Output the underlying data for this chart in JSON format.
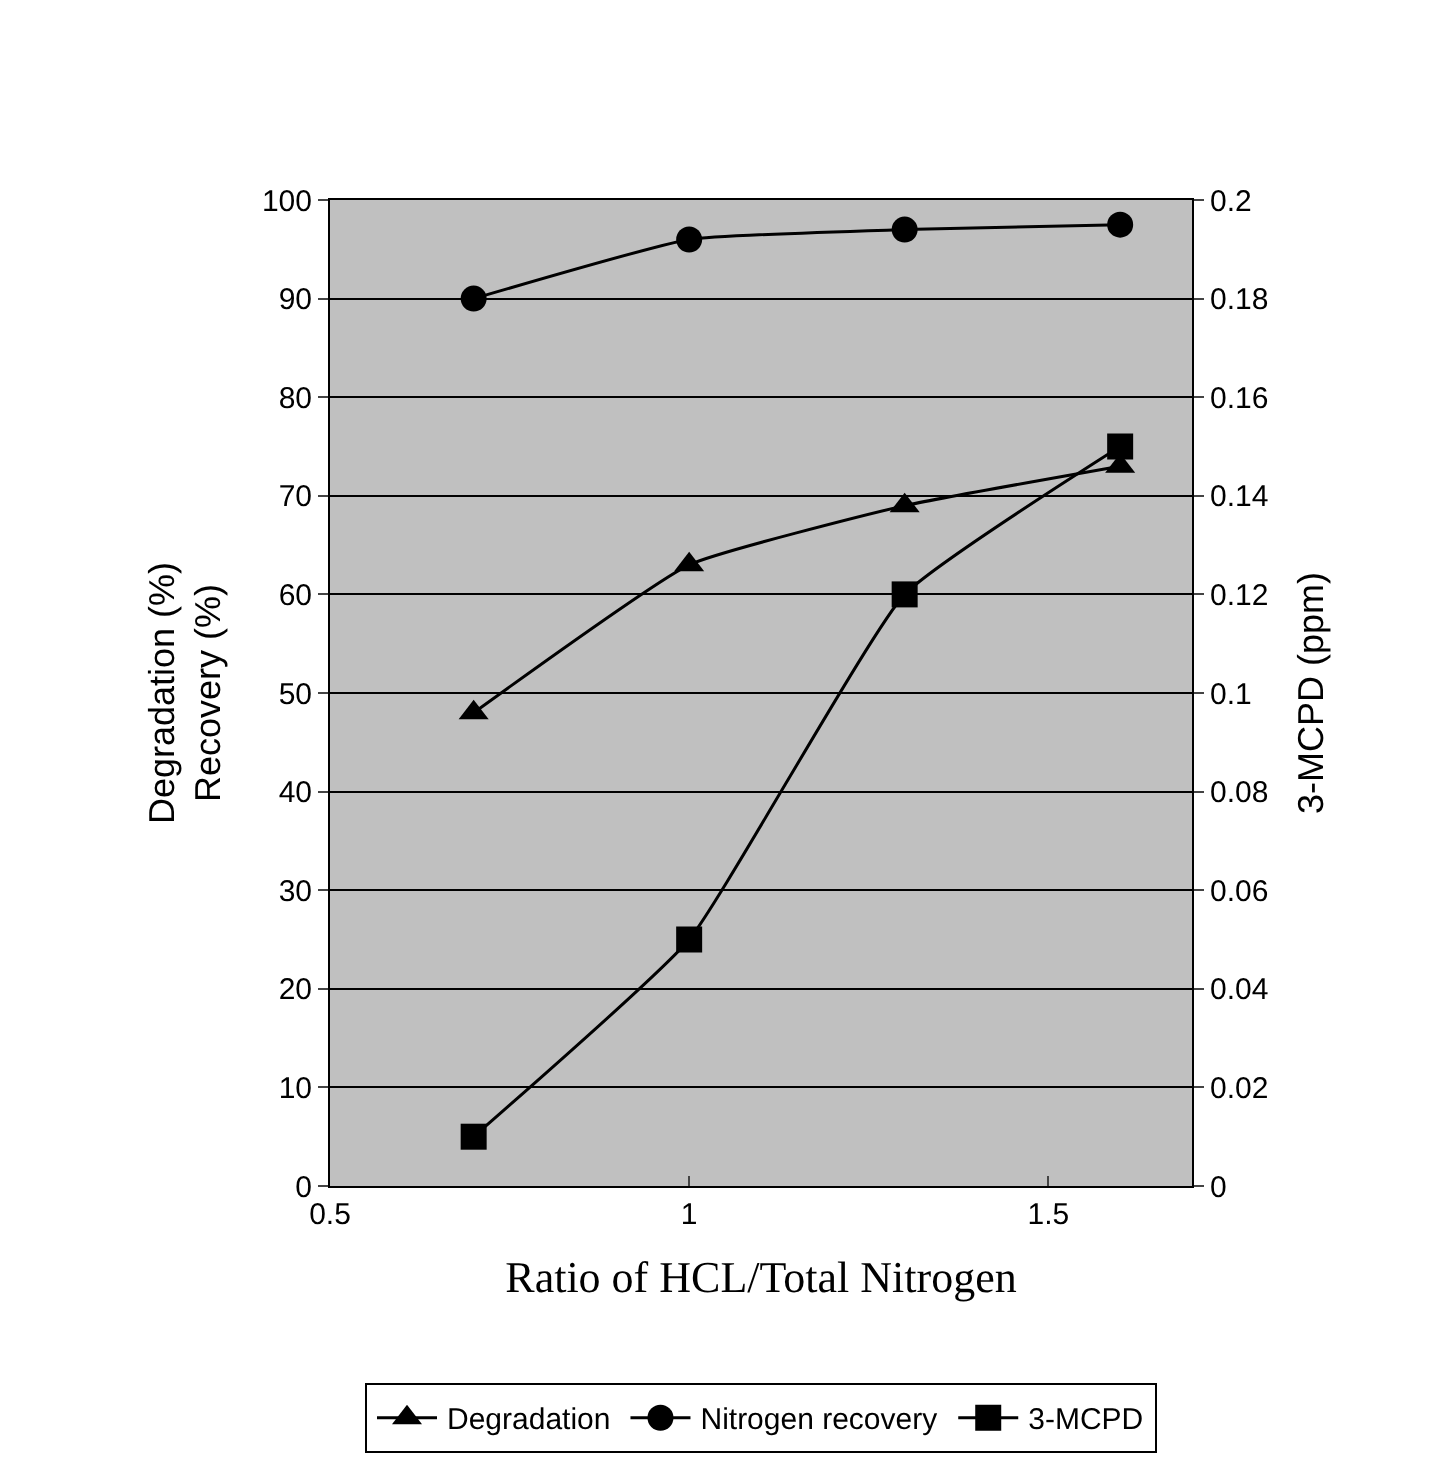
{
  "chart_data": {
    "type": "line",
    "xlabel": "Ratio of HCL/Total Nitrogen",
    "ylabel": "Degradation (%)\nRecovery (%)",
    "y2label": "3-MCPD (ppm)",
    "x": [
      0.7,
      1.0,
      1.3,
      1.6
    ],
    "xlim": [
      0.5,
      1.7
    ],
    "xticks": [
      0.5,
      1,
      1.5
    ],
    "ylim": [
      0,
      100
    ],
    "yticks": [
      0,
      10,
      20,
      30,
      40,
      50,
      60,
      70,
      80,
      90,
      100
    ],
    "y2lim": [
      0,
      0.2
    ],
    "y2ticks": [
      0,
      0.02,
      0.04,
      0.06,
      0.08,
      0.1,
      0.12,
      0.14,
      0.16,
      0.18,
      0.2
    ],
    "grid": "y",
    "legend": "bottom",
    "line_style": "solid",
    "series": [
      {
        "name": "Degradation",
        "color": "#000000",
        "marker": "triangle",
        "values": [
          48,
          63,
          69,
          73
        ]
      },
      {
        "name": "Nitrogen recovery",
        "color": "#000000",
        "marker": "circle",
        "values": [
          90,
          96,
          97,
          97.5
        ]
      },
      {
        "name": "3-MCPD",
        "color": "#000000",
        "marker": "square",
        "axis": "y2",
        "values": [
          0.01,
          0.05,
          0.12,
          0.15
        ]
      }
    ]
  }
}
